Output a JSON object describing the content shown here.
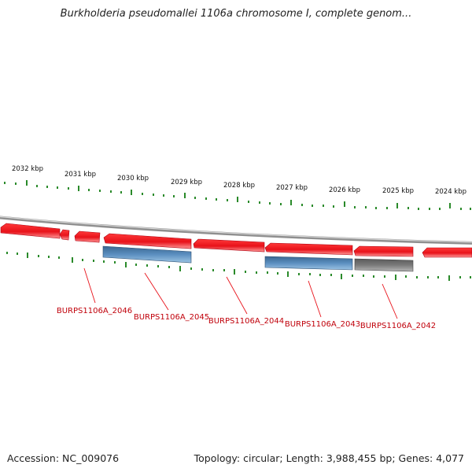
{
  "title": "Burkholderia pseudomallei 1106a chromosome I, complete genom...",
  "footer": {
    "accession": "Accession: NC_009076",
    "summary": "Topology: circular; Length: 3,988,455 bp; Genes: 4,077"
  },
  "colors": {
    "forward_gene": "#e8121a",
    "cds": "#4a7fb0",
    "other_feature": "#6b6b6b",
    "label": "#c0000a",
    "tick": "#2a8a2a",
    "backbone": "#9a9a9a"
  },
  "scale_labels": [
    "2032 kbp",
    "2031 kbp",
    "2030 kbp",
    "2029 kbp",
    "2028 kbp",
    "2027 kbp",
    "2026 kbp",
    "2025 kbp",
    "2024 kbp"
  ],
  "gene_labels": [
    "BURPS1106A_2046",
    "BURPS1106A_2045",
    "BURPS1106A_2044",
    "BURPS1106A_2043",
    "BURPS1106A_2042"
  ]
}
